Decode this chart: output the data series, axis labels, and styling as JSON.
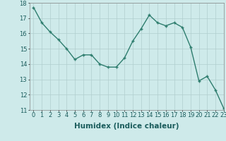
{
  "x": [
    0,
    1,
    2,
    3,
    4,
    5,
    6,
    7,
    8,
    9,
    10,
    11,
    12,
    13,
    14,
    15,
    16,
    17,
    18,
    19,
    20,
    21,
    22,
    23
  ],
  "y": [
    17.7,
    16.7,
    16.1,
    15.6,
    15.0,
    14.3,
    14.6,
    14.6,
    14.0,
    13.8,
    13.8,
    14.4,
    15.5,
    16.3,
    17.2,
    16.7,
    16.5,
    16.7,
    16.4,
    15.1,
    12.9,
    13.2,
    12.3,
    11.1
  ],
  "line_color": "#2e7d6e",
  "marker": "+",
  "marker_size": 3.5,
  "bg_color": "#ceeaea",
  "grid_color": "#b0cece",
  "xlabel": "Humidex (Indice chaleur)",
  "ylim": [
    11,
    18
  ],
  "xlim": [
    -0.5,
    23
  ],
  "yticks": [
    11,
    12,
    13,
    14,
    15,
    16,
    17,
    18
  ],
  "xticks": [
    0,
    1,
    2,
    3,
    4,
    5,
    6,
    7,
    8,
    9,
    10,
    11,
    12,
    13,
    14,
    15,
    16,
    17,
    18,
    19,
    20,
    21,
    22,
    23
  ],
  "xlabel_fontsize": 7.5,
  "tick_fontsize": 6.0,
  "line_width": 1.0
}
